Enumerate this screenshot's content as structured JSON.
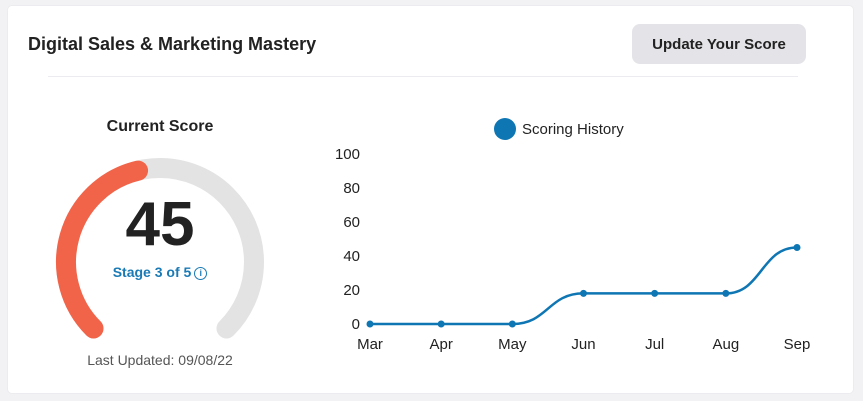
{
  "header": {
    "title": "Digital Sales & Marketing Mastery",
    "update_button": "Update Your Score"
  },
  "score": {
    "label": "Current Score",
    "value": "45",
    "value_fraction": 0.45,
    "stage_text": "Stage 3 of 5",
    "info_glyph": "i",
    "last_updated": "Last Updated: 09/08/22",
    "arc_color": "#f26449",
    "track_color": "#e3e3e3"
  },
  "chart_data": {
    "type": "line",
    "legend": "Scoring History",
    "legend_position": "top",
    "categories": [
      "Mar",
      "Apr",
      "May",
      "Jun",
      "Jul",
      "Aug",
      "Sep"
    ],
    "series": [
      {
        "name": "Scoring History",
        "values": [
          0,
          0,
          0,
          18,
          18,
          18,
          45
        ]
      }
    ],
    "yticks": [
      0,
      20,
      40,
      60,
      80,
      100
    ],
    "ylim": [
      0,
      100
    ],
    "grid": false,
    "color": "#0f76b4"
  }
}
